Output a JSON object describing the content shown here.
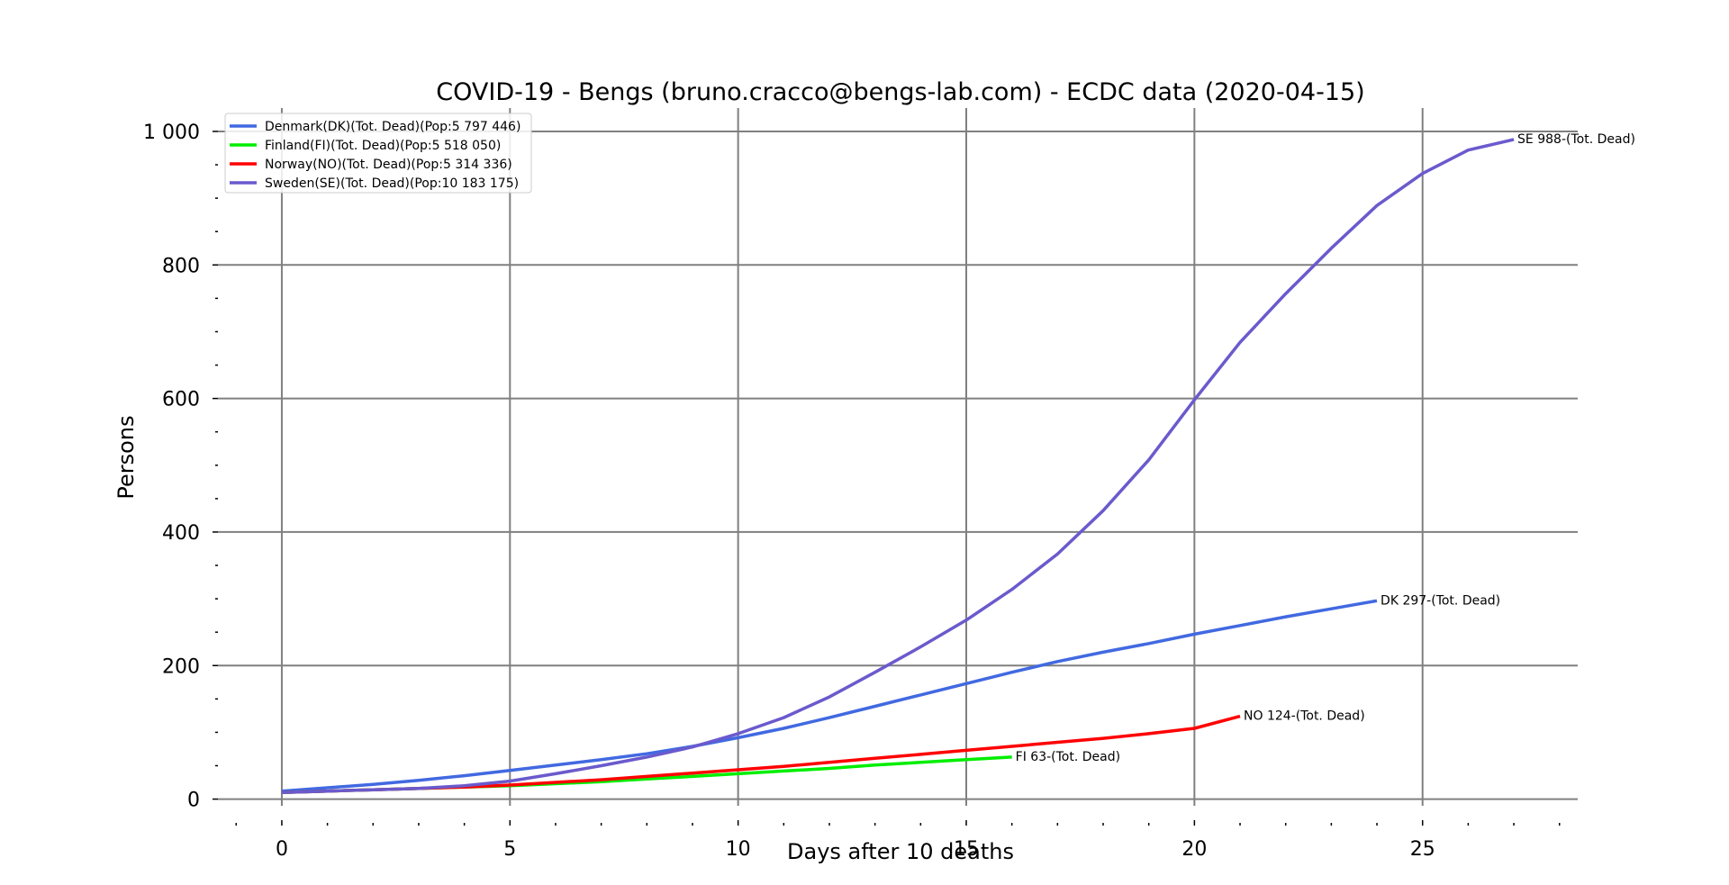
{
  "chart_data": {
    "type": "line",
    "title": "COVID-19 - Bengs (bruno.cracco@bengs-lab.com) - ECDC data  (2020-04-15)",
    "xlabel": "Days after 10 deaths",
    "ylabel": "Persons",
    "xlim": [
      -1.4,
      28.4
    ],
    "ylim": [
      -10,
      1035
    ],
    "grid": true,
    "legend_position": "top-left",
    "x_ticks": [
      0,
      5,
      10,
      15,
      20,
      25
    ],
    "x_tick_labels": [
      "0",
      "5",
      "10",
      "15",
      "20",
      "25"
    ],
    "y_ticks": [
      0,
      200,
      400,
      600,
      800,
      1000
    ],
    "y_tick_labels": [
      "0",
      "200",
      "400",
      "600",
      "800",
      "1 000"
    ],
    "series": [
      {
        "name": "Denmark(DK)(Tot. Dead)(Pop:5 797 446)",
        "color": "#4169e1",
        "x": [
          0,
          1,
          2,
          3,
          4,
          5,
          6,
          7,
          8,
          9,
          10,
          11,
          12,
          13,
          14,
          15,
          16,
          17,
          18,
          19,
          20,
          21,
          22,
          23,
          24
        ],
        "values": [
          12,
          17,
          22,
          28,
          35,
          43,
          51,
          59,
          68,
          79,
          92,
          106,
          122,
          139,
          156,
          173,
          190,
          206,
          220,
          233,
          247,
          260,
          273,
          285,
          297
        ],
        "end_label": "DK 297-(Tot. Dead)"
      },
      {
        "name": "Finland(FI)(Tot. Dead)(Pop:5 518 050)",
        "color": "#00ee00",
        "x": [
          0,
          1,
          2,
          3,
          4,
          5,
          6,
          7,
          8,
          9,
          10,
          11,
          12,
          13,
          14,
          15,
          16
        ],
        "values": [
          10,
          12,
          14,
          16,
          18,
          20,
          23,
          26,
          30,
          34,
          38,
          42,
          46,
          51,
          55,
          59,
          63
        ],
        "end_label": "FI 63-(Tot. Dead)"
      },
      {
        "name": "Norway(NO)(Tot. Dead)(Pop:5 314 336)",
        "color": "#ff0000",
        "x": [
          0,
          1,
          2,
          3,
          4,
          5,
          6,
          7,
          8,
          9,
          10,
          11,
          12,
          13,
          14,
          15,
          16,
          17,
          18,
          19,
          20,
          21
        ],
        "values": [
          10,
          12,
          14,
          16,
          18,
          21,
          25,
          29,
          34,
          39,
          44,
          49,
          55,
          61,
          67,
          73,
          79,
          85,
          91,
          98,
          106,
          124
        ],
        "end_label": "NO 124-(Tot. Dead)"
      },
      {
        "name": "Sweden(SE)(Tot. Dead)(Pop:10 183 175)",
        "color": "#6a5acd",
        "x": [
          0,
          1,
          2,
          3,
          4,
          5,
          6,
          7,
          8,
          9,
          10,
          11,
          12,
          13,
          14,
          15,
          16,
          17,
          18,
          19,
          20,
          21,
          22,
          23,
          24,
          25,
          26,
          27
        ],
        "values": [
          10,
          12,
          14,
          16,
          20,
          27,
          38,
          50,
          63,
          78,
          98,
          122,
          153,
          190,
          228,
          268,
          314,
          367,
          432,
          508,
          598,
          684,
          757,
          825,
          889,
          937,
          972,
          988
        ],
        "end_label": "SE 988-(Tot. Dead)"
      }
    ]
  }
}
